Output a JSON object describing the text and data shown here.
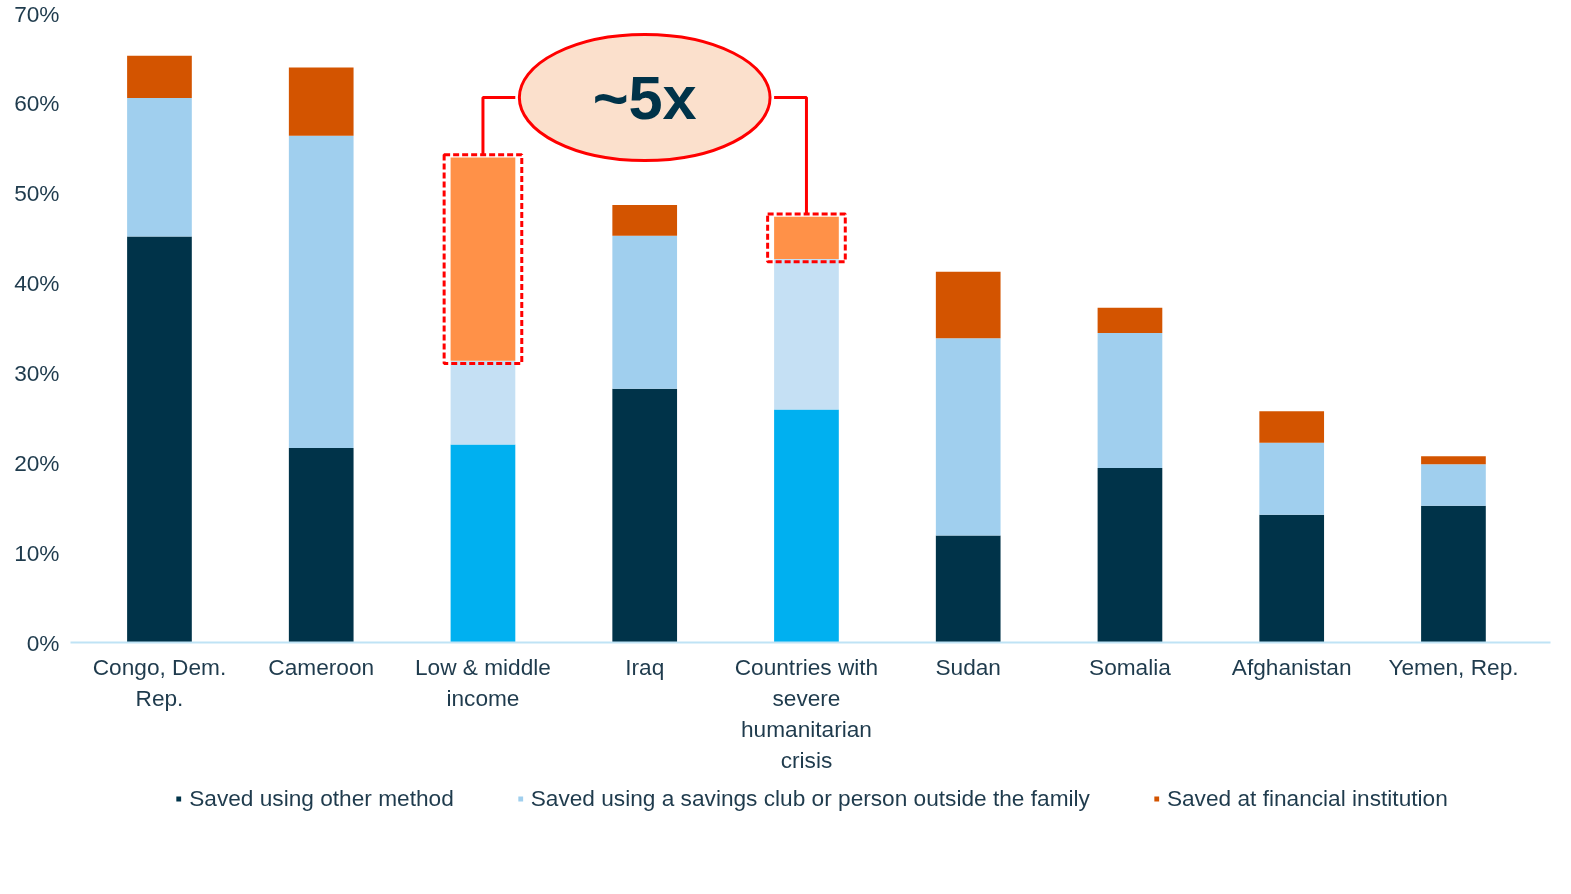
{
  "chart_data": {
    "type": "bar",
    "stacked": true,
    "categories": [
      "Congo, Dem. Rep.",
      "Cameroon",
      "Low & middle income",
      "Iraq",
      "Countries with severe humanitarian crisis",
      "Sudan",
      "Somalia",
      "Afghanistan",
      "Yemen, Rep."
    ],
    "series": [
      {
        "name": "Saved using other method",
        "color": "#003349",
        "colors": [
          "#003349",
          "#003349",
          "#00b0f0",
          "#003349",
          "#00b0f0",
          "#003349",
          "#003349",
          "#003349",
          "#003349"
        ],
        "values": [
          45.1,
          21.6,
          22.0,
          28.2,
          25.9,
          11.9,
          19.4,
          14.2,
          15.2
        ]
      },
      {
        "name": "Saved using a savings club or person outside the family",
        "color": "#a0cfee",
        "colors": [
          "#a0cfee",
          "#a0cfee",
          "#c5e0f4",
          "#a0cfee",
          "#c5e0f4",
          "#a0cfee",
          "#a0cfee",
          "#a0cfee",
          "#a0cfee"
        ],
        "values": [
          15.4,
          34.7,
          9.3,
          17.0,
          16.7,
          21.9,
          15.0,
          8.0,
          4.6
        ]
      },
      {
        "name": "Saved at financial institution",
        "color": "#d35400",
        "colors": [
          "#d35400",
          "#d35400",
          "#ff9148",
          "#d35400",
          "#ff9148",
          "#d35400",
          "#d35400",
          "#d35400",
          "#d35400"
        ],
        "values": [
          4.7,
          7.6,
          22.6,
          3.4,
          4.7,
          7.4,
          2.8,
          3.5,
          0.9
        ]
      }
    ],
    "ylim": [
      0,
      70
    ],
    "yticks": [
      {
        "value": 0,
        "label": "0%"
      },
      {
        "value": 10,
        "label": "10%"
      },
      {
        "value": 20,
        "label": "20%"
      },
      {
        "value": 30,
        "label": "30%"
      },
      {
        "value": 40,
        "label": "40%"
      },
      {
        "value": 50,
        "label": "50%"
      },
      {
        "value": 60,
        "label": "60%"
      },
      {
        "value": 70,
        "label": "70%"
      }
    ],
    "grid": false,
    "legend": "bottom",
    "annotations": [
      {
        "text": "~5x",
        "x": "Low & middle income",
        "y": 53.9
      }
    ]
  }
}
